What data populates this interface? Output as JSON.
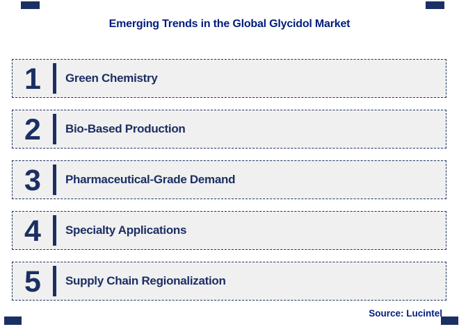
{
  "title": "Emerging Trends in the Global Glycidol Market",
  "source": "Source: Lucintel",
  "colors": {
    "title-blue": "#001d7d",
    "navy": "#1b2f63",
    "row-fill": "#f0f0f0"
  },
  "trends": [
    {
      "number": "1",
      "label": "Green Chemistry"
    },
    {
      "number": "2",
      "label": "Bio-Based Production"
    },
    {
      "number": "3",
      "label": "Pharmaceutical-Grade Demand"
    },
    {
      "number": "4",
      "label": "Specialty Applications"
    },
    {
      "number": "5",
      "label": "Supply Chain Regionalization"
    }
  ]
}
